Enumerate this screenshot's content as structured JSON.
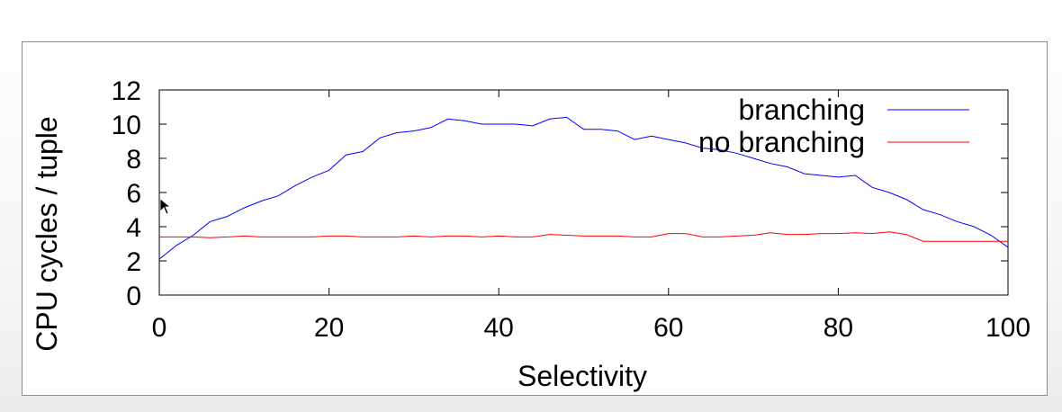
{
  "chart_data": {
    "type": "line",
    "title": "",
    "xlabel": "Selectivity",
    "ylabel": "CPU cycles / tuple",
    "xlim": [
      0,
      100
    ],
    "ylim": [
      0,
      12
    ],
    "xticks": [
      "0",
      "20",
      "40",
      "60",
      "80",
      "100"
    ],
    "yticks": [
      "0",
      "2",
      "4",
      "6",
      "8",
      "10",
      "12"
    ],
    "legend_position": "top-right",
    "grid": false,
    "series": [
      {
        "name": "branching",
        "color": "#0000ff",
        "x": [
          0,
          2,
          4,
          6,
          8,
          10,
          12,
          14,
          16,
          18,
          20,
          22,
          24,
          26,
          28,
          30,
          32,
          34,
          36,
          38,
          40,
          42,
          44,
          46,
          48,
          50,
          52,
          54,
          56,
          58,
          60,
          62,
          64,
          66,
          68,
          70,
          72,
          74,
          76,
          78,
          80,
          82,
          84,
          86,
          88,
          90,
          92,
          94,
          96,
          98,
          100
        ],
        "y": [
          2.1,
          2.9,
          3.5,
          4.3,
          4.6,
          5.1,
          5.5,
          5.8,
          6.4,
          6.9,
          7.3,
          8.2,
          8.4,
          9.2,
          9.5,
          9.6,
          9.8,
          10.3,
          10.2,
          10.0,
          10.0,
          10.0,
          9.9,
          10.3,
          10.4,
          9.7,
          9.7,
          9.6,
          9.1,
          9.3,
          9.1,
          8.9,
          8.6,
          8.5,
          8.3,
          8.0,
          7.7,
          7.5,
          7.1,
          7.0,
          6.9,
          7.0,
          6.3,
          6.0,
          5.6,
          5.0,
          4.7,
          4.3,
          4.0,
          3.5,
          2.8
        ]
      },
      {
        "name": "no branching",
        "color": "#ff0000",
        "x": [
          0,
          2,
          4,
          6,
          8,
          10,
          12,
          14,
          16,
          18,
          20,
          22,
          24,
          26,
          28,
          30,
          32,
          34,
          36,
          38,
          40,
          42,
          44,
          46,
          48,
          50,
          52,
          54,
          56,
          58,
          60,
          62,
          64,
          66,
          68,
          70,
          72,
          74,
          76,
          78,
          80,
          82,
          84,
          86,
          88,
          90,
          92,
          94,
          96,
          98,
          100
        ],
        "y": [
          3.4,
          3.4,
          3.4,
          3.35,
          3.4,
          3.45,
          3.4,
          3.4,
          3.4,
          3.4,
          3.45,
          3.45,
          3.4,
          3.4,
          3.4,
          3.45,
          3.4,
          3.45,
          3.45,
          3.4,
          3.45,
          3.4,
          3.4,
          3.55,
          3.5,
          3.45,
          3.45,
          3.45,
          3.4,
          3.4,
          3.6,
          3.6,
          3.4,
          3.4,
          3.45,
          3.5,
          3.65,
          3.55,
          3.55,
          3.6,
          3.6,
          3.65,
          3.6,
          3.7,
          3.55,
          3.15,
          3.15,
          3.15,
          3.15,
          3.15,
          3.15
        ]
      }
    ]
  }
}
